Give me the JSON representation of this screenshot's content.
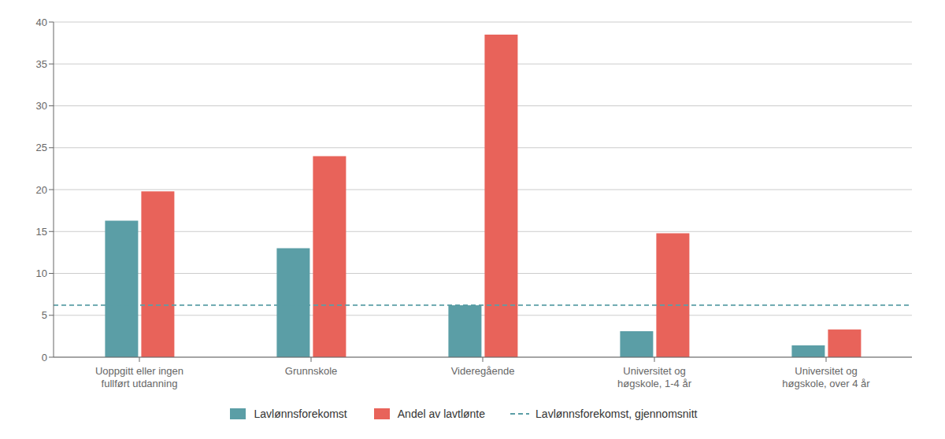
{
  "chart_data": {
    "type": "bar",
    "categories": [
      "Uoppgitt eller ingen\nfullført utdanning",
      "Grunnskole",
      "Videregående",
      "Universitet og\nhøgskole, 1-4 år",
      "Universitet og\nhøgskole, over 4 år"
    ],
    "series": [
      {
        "name": "Lavlønnsforekomst",
        "color": "#5b9ea6",
        "values": [
          16.3,
          13.0,
          6.2,
          3.1,
          1.4
        ]
      },
      {
        "name": "Andel av lavtlønte",
        "color": "#e8635a",
        "values": [
          19.8,
          24.0,
          38.5,
          14.8,
          3.3
        ]
      }
    ],
    "reference_line": {
      "name": "Lavlønnsforekomst, gjennomsnitt",
      "value": 6.2,
      "color": "#5b9ea6",
      "line_style": "dashed"
    },
    "ylim": [
      0,
      40
    ],
    "yticks": [
      0,
      5,
      10,
      15,
      20,
      25,
      30,
      35,
      40
    ],
    "grid": true,
    "legend": "bottom"
  }
}
